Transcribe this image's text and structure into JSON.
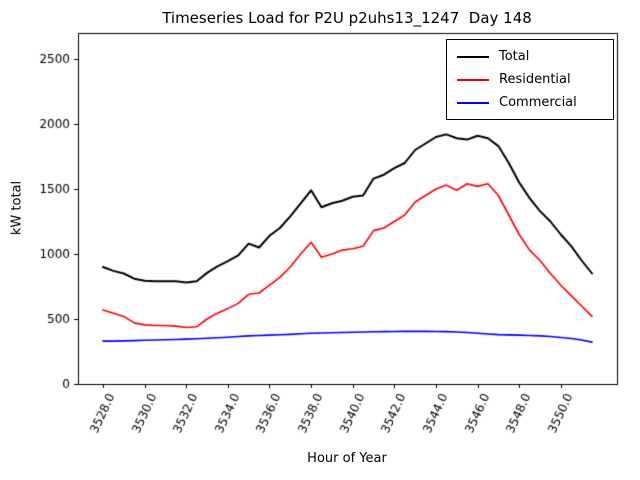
{
  "chart_data": {
    "type": "line",
    "title": "Timeseries Load for P2U p2uhs13_1247  Day 148",
    "xlabel": "Hour of Year",
    "ylabel": "kW total",
    "xlim": [
      3526.8,
      3552.7
    ],
    "ylim": [
      0,
      2700
    ],
    "xticks": [
      3528,
      3530,
      3532,
      3534,
      3536,
      3538,
      3540,
      3542,
      3544,
      3546,
      3548,
      3550
    ],
    "xtick_labels": [
      "3528.0",
      "3530.0",
      "3532.0",
      "3534.0",
      "3536.0",
      "3538.0",
      "3540.0",
      "3542.0",
      "3544.0",
      "3546.0",
      "3548.0",
      "3550.0"
    ],
    "yticks": [
      0,
      500,
      1000,
      1500,
      2000,
      2500
    ],
    "ytick_labels": [
      "0",
      "500",
      "1000",
      "1500",
      "2000",
      "2500"
    ],
    "grid": false,
    "legend_position": "upper right",
    "x": [
      3528.0,
      3528.5,
      3529.0,
      3529.5,
      3530.0,
      3530.5,
      3531.0,
      3531.5,
      3532.0,
      3532.5,
      3533.0,
      3533.5,
      3534.0,
      3534.5,
      3535.0,
      3535.5,
      3536.0,
      3536.5,
      3537.0,
      3537.5,
      3538.0,
      3538.5,
      3539.0,
      3539.5,
      3540.0,
      3540.5,
      3541.0,
      3541.5,
      3542.0,
      3542.5,
      3543.0,
      3543.5,
      3544.0,
      3544.5,
      3545.0,
      3545.5,
      3546.0,
      3546.5,
      3547.0,
      3547.5,
      3548.0,
      3548.5,
      3549.0,
      3549.5,
      3550.0,
      3550.5,
      3551.0,
      3551.5
    ],
    "series": [
      {
        "name": "Total",
        "color": "#000000",
        "values": [
          900,
          870,
          850,
          810,
          795,
          790,
          790,
          790,
          780,
          790,
          855,
          905,
          945,
          990,
          1080,
          1050,
          1140,
          1200,
          1290,
          1390,
          1490,
          1360,
          1390,
          1410,
          1440,
          1450,
          1580,
          1610,
          1660,
          1700,
          1800,
          1850,
          1900,
          1920,
          1890,
          1880,
          1910,
          1890,
          1830,
          1700,
          1550,
          1430,
          1330,
          1250,
          1150,
          1060,
          950,
          850
        ]
      },
      {
        "name": "Residential",
        "color": "#ff0000",
        "values": [
          570,
          545,
          520,
          470,
          455,
          450,
          450,
          445,
          435,
          440,
          500,
          545,
          580,
          620,
          690,
          700,
          760,
          820,
          900,
          1000,
          1090,
          975,
          1000,
          1030,
          1040,
          1060,
          1180,
          1200,
          1250,
          1300,
          1400,
          1450,
          1500,
          1530,
          1490,
          1540,
          1520,
          1540,
          1450,
          1300,
          1150,
          1030,
          950,
          850,
          760,
          680,
          600,
          520
        ]
      },
      {
        "name": "Commercial",
        "color": "#0000ff",
        "values": [
          330,
          330,
          332,
          334,
          336,
          338,
          340,
          342,
          345,
          348,
          352,
          356,
          360,
          365,
          370,
          373,
          376,
          379,
          382,
          386,
          390,
          392,
          394,
          396,
          398,
          400,
          402,
          403,
          404,
          405,
          405,
          405,
          404,
          403,
          400,
          396,
          390,
          385,
          380,
          378,
          376,
          373,
          370,
          365,
          358,
          350,
          338,
          322
        ]
      }
    ]
  }
}
